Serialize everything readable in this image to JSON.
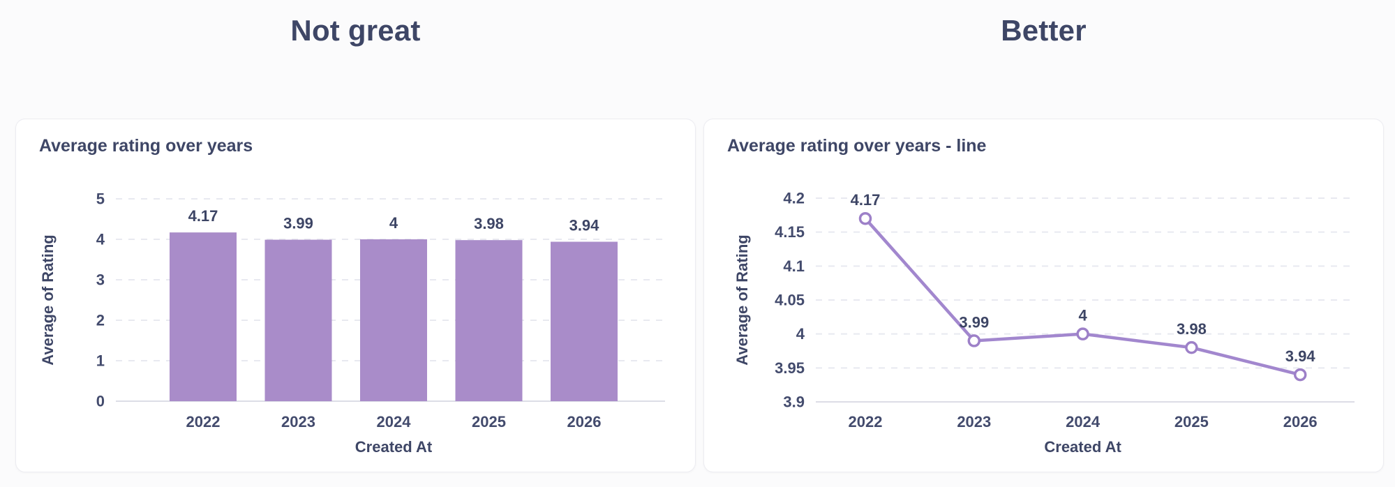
{
  "headings": {
    "left": "Not great",
    "right": "Better"
  },
  "colors": {
    "heading_text": "#3e4666",
    "tick_text": "#434b6d",
    "grid_dashed": "#e8e9f0",
    "axis_line": "#dcdde6",
    "bar_purple": "#a98cc9",
    "line_purple": "#a287ce",
    "marker_fill": "#ffffff",
    "card_background": "#ffffff",
    "card_border": "#ececf1"
  },
  "chart_data": [
    {
      "type": "bar",
      "title": "Average rating over years",
      "categories": [
        "2022",
        "2023",
        "2024",
        "2025",
        "2026"
      ],
      "values": [
        4.17,
        3.99,
        4,
        3.98,
        3.94
      ],
      "value_labels": [
        "4.17",
        "3.99",
        "4",
        "3.98",
        "3.94"
      ],
      "xlabel": "Created At",
      "ylabel": "Average of Rating",
      "ylim": [
        0,
        5
      ],
      "yticks": [
        0,
        1,
        2,
        3,
        4,
        5
      ],
      "ytick_labels": [
        "0",
        "1",
        "2",
        "3",
        "4",
        "5"
      ],
      "grid": "horizontal-dashed",
      "legend": "none",
      "bar_color": "#a98cc9"
    },
    {
      "type": "line",
      "title": "Average rating over years - line",
      "categories": [
        "2022",
        "2023",
        "2024",
        "2025",
        "2026"
      ],
      "values": [
        4.17,
        3.99,
        4,
        3.98,
        3.94
      ],
      "value_labels": [
        "4.17",
        "3.99",
        "4",
        "3.98",
        "3.94"
      ],
      "xlabel": "Created At",
      "ylabel": "Average of Rating",
      "ylim": [
        3.9,
        4.2
      ],
      "yticks": [
        3.9,
        3.95,
        4,
        4.05,
        4.1,
        4.15,
        4.2
      ],
      "ytick_labels": [
        "3.9",
        "3.95",
        "4",
        "4.05",
        "4.1",
        "4.15",
        "4.2"
      ],
      "grid": "horizontal-dashed",
      "legend": "none",
      "line_color": "#a287ce",
      "marker": "open-circle",
      "marker_stroke": "#9d80c8",
      "marker_fill": "#ffffff"
    }
  ]
}
